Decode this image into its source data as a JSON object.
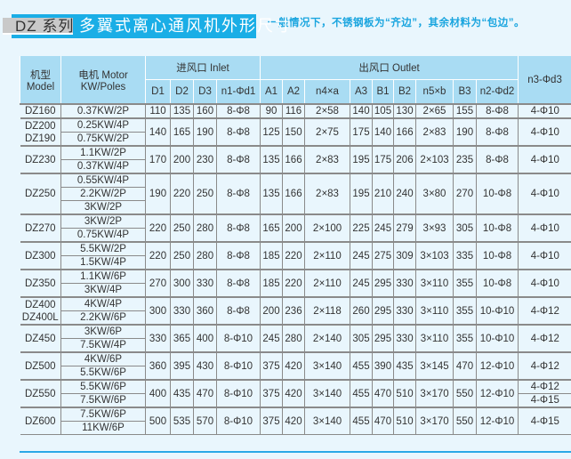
{
  "header": {
    "series_label": "DZ 系列",
    "title": "多翼式离心通风机外形尺寸",
    "note": "一般情况下，不锈钢板为“齐边”，其余材料为“包边”。"
  },
  "colors": {
    "accent": "#1aaee6",
    "header_bg": "#a9dcf3",
    "page_bg": "#e9f6fd",
    "series_bg": "#c9c9c9"
  },
  "table": {
    "col_model": "机型 Model",
    "col_motor": "电机 Motor KW/Poles",
    "group_inlet": "进风口 Inlet",
    "group_outlet": "出风口 Outlet",
    "col_n3": "n3-Φd3",
    "sub_columns": [
      "D1",
      "D2",
      "D3",
      "n1-Φd1",
      "A1",
      "A2",
      "n4×a",
      "A3",
      "B1",
      "B2",
      "n5×b",
      "B3",
      "n2-Φd2"
    ],
    "groups": [
      {
        "models": [
          "DZ160"
        ],
        "motors": [
          "0.37KW/2P"
        ],
        "values": [
          "110",
          "135",
          "160",
          "8-Φ8",
          "90",
          "116",
          "2×58",
          "140",
          "105",
          "130",
          "2×65",
          "155",
          "8-Φ8"
        ],
        "n3": [
          "4-Φ10"
        ]
      },
      {
        "models": [
          "DZ200",
          "DZ190"
        ],
        "motors": [
          "0.25KW/4P",
          "0.75KW/2P"
        ],
        "values": [
          "140",
          "165",
          "190",
          "8-Φ8",
          "125",
          "150",
          "2×75",
          "175",
          "140",
          "166",
          "2×83",
          "190",
          "8-Φ8"
        ],
        "n3": [
          "4-Φ10"
        ]
      },
      {
        "models": [
          "DZ230"
        ],
        "motors": [
          "1.1KW/2P",
          "0.37KW/4P"
        ],
        "values": [
          "170",
          "200",
          "230",
          "8-Φ8",
          "135",
          "166",
          "2×83",
          "195",
          "175",
          "206",
          "2×103",
          "235",
          "8-Φ8"
        ],
        "n3": [
          "4-Φ10"
        ]
      },
      {
        "models": [
          "DZ250"
        ],
        "motors": [
          "0.55KW/4P",
          "2.2KW/2P",
          "3KW/2P"
        ],
        "values": [
          "190",
          "220",
          "250",
          "8-Φ8",
          "135",
          "166",
          "2×83",
          "195",
          "210",
          "240",
          "3×80",
          "270",
          "10-Φ8"
        ],
        "n3": [
          "4-Φ10"
        ]
      },
      {
        "models": [
          "DZ270"
        ],
        "motors": [
          "3KW/2P",
          "0.75KW/4P"
        ],
        "values": [
          "220",
          "250",
          "280",
          "8-Φ8",
          "165",
          "200",
          "2×100",
          "225",
          "245",
          "279",
          "3×93",
          "305",
          "10-Φ8"
        ],
        "n3": [
          "4-Φ10"
        ]
      },
      {
        "models": [
          "DZ300"
        ],
        "motors": [
          "5.5KW/2P",
          "1.5KW/4P"
        ],
        "values": [
          "220",
          "250",
          "280",
          "8-Φ8",
          "185",
          "220",
          "2×110",
          "245",
          "275",
          "309",
          "3×103",
          "335",
          "10-Φ8"
        ],
        "n3": [
          "4-Φ10"
        ]
      },
      {
        "models": [
          "DZ350"
        ],
        "motors": [
          "1.1KW/6P",
          "3KW/4P"
        ],
        "values": [
          "270",
          "300",
          "330",
          "8-Φ8",
          "185",
          "220",
          "2×110",
          "245",
          "295",
          "330",
          "3×110",
          "355",
          "10-Φ8"
        ],
        "n3": [
          "4-Φ10"
        ]
      },
      {
        "models": [
          "DZ400",
          "DZ400L"
        ],
        "motors": [
          "4KW/4P",
          "2.2KW/6P"
        ],
        "values": [
          "300",
          "330",
          "360",
          "8-Φ8",
          "200",
          "236",
          "2×118",
          "260",
          "295",
          "330",
          "3×110",
          "355",
          "10-Φ10"
        ],
        "n3": [
          "4-Φ12"
        ]
      },
      {
        "models": [
          "DZ450"
        ],
        "motors": [
          "3KW/6P",
          "7.5KW/4P"
        ],
        "values": [
          "330",
          "365",
          "400",
          "8-Φ10",
          "245",
          "280",
          "2×140",
          "305",
          "295",
          "330",
          "3×110",
          "355",
          "10-Φ10"
        ],
        "n3": [
          "4-Φ12"
        ]
      },
      {
        "models": [
          "DZ500"
        ],
        "motors": [
          "4KW/6P",
          "5.5KW/6P"
        ],
        "values": [
          "360",
          "395",
          "430",
          "8-Φ10",
          "375",
          "420",
          "3×140",
          "455",
          "390",
          "435",
          "3×145",
          "470",
          "12-Φ10"
        ],
        "n3": [
          "4-Φ12"
        ]
      },
      {
        "models": [
          "DZ550"
        ],
        "motors": [
          "5.5KW/6P",
          "7.5KW/6P"
        ],
        "values": [
          "400",
          "435",
          "470",
          "8-Φ10",
          "375",
          "420",
          "3×140",
          "455",
          "470",
          "510",
          "3×170",
          "550",
          "12-Φ10"
        ],
        "n3": [
          "4-Φ12",
          "4-Φ15"
        ]
      },
      {
        "models": [
          "DZ600"
        ],
        "motors": [
          "7.5KW/6P",
          "11KW/6P"
        ],
        "values": [
          "500",
          "535",
          "570",
          "8-Φ10",
          "375",
          "420",
          "3×140",
          "455",
          "470",
          "510",
          "3×170",
          "550",
          "12-Φ10"
        ],
        "n3": [
          "4-Φ15"
        ]
      }
    ]
  }
}
